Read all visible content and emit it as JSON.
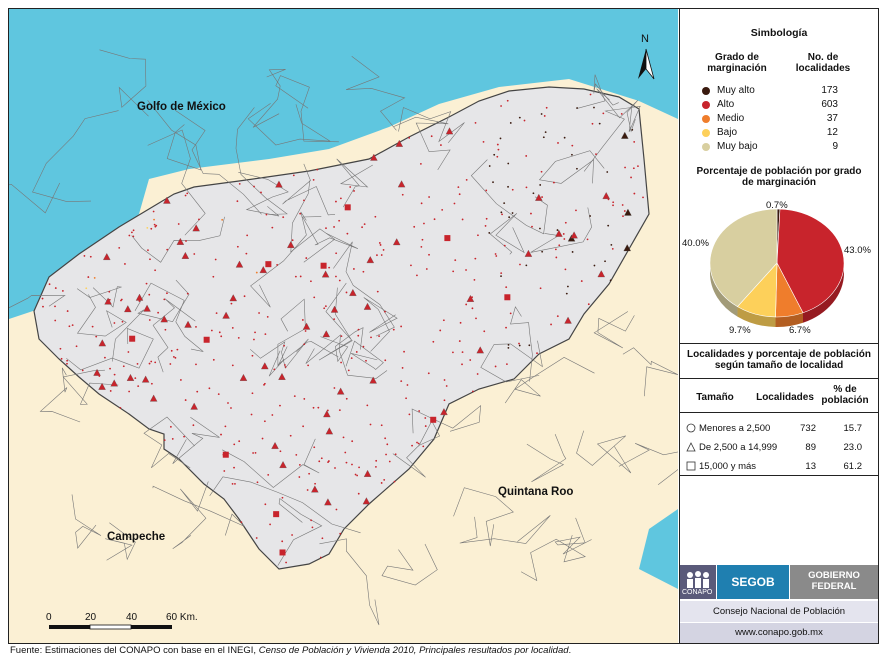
{
  "map": {
    "labels": {
      "gulf": "Golfo de México",
      "quintana_roo": "Quintana Roo",
      "campeche": "Campeche"
    },
    "north_label": "N",
    "scale": {
      "ticks": [
        "0",
        "20",
        "40",
        "60 Km."
      ]
    },
    "colors": {
      "sea": "#5fc6df",
      "land_outside": "#fbf0d4",
      "state": "#e6e6e8",
      "border": "#666666"
    }
  },
  "legend": {
    "title": "Simbología",
    "col_grado": "Grado de marginación",
    "col_localidades": "No. de localidades",
    "items": [
      {
        "label": "Muy alto",
        "count": "173",
        "color": "#3a1a0e"
      },
      {
        "label": "Alto",
        "count": "603",
        "color": "#c8242c"
      },
      {
        "label": "Medio",
        "count": "37",
        "color": "#ef7d2c"
      },
      {
        "label": "Bajo",
        "count": "12",
        "color": "#fdd05a"
      },
      {
        "label": "Muy bajo",
        "count": "9",
        "color": "#d8cfa0"
      }
    ],
    "pie_title": "Porcentaje de población por grado de marginación",
    "pie": [
      {
        "label": "0.7%",
        "value": 0.7,
        "color": "#3a1a0e"
      },
      {
        "label": "43.0%",
        "value": 43.0,
        "color": "#c8242c"
      },
      {
        "label": "6.7%",
        "value": 6.7,
        "color": "#ef7d2c"
      },
      {
        "label": "9.7%",
        "value": 9.7,
        "color": "#fdd05a"
      },
      {
        "label": "40.0%",
        "value": 40.0,
        "color": "#d8cfa0"
      }
    ],
    "table_title": "Localidades y porcentaje de población según tamaño de localidad",
    "table_headers": {
      "tamano": "Tamaño",
      "localidades": "Localidades",
      "porcentaje": "% de población"
    },
    "table_rows": [
      {
        "size": "Menores a 2,500",
        "count": "732",
        "pct": "15.7",
        "symbol": "circle"
      },
      {
        "size": "De 2,500 a 14,999",
        "count": "89",
        "pct": "23.0",
        "symbol": "triangle"
      },
      {
        "size": "15,000 y más",
        "count": "13",
        "pct": "61.2",
        "symbol": "square"
      }
    ],
    "logos": {
      "conapo": "CONAPO",
      "segob": "SEGOB",
      "gobierno_1": "GOBIERNO",
      "gobierno_2": "FEDERAL",
      "consejo": "Consejo Nacional de Población",
      "url": "www.conapo.gob.mx"
    }
  },
  "source": {
    "prefix": "Fuente: Estimaciones del CONAPO con base en el INEGI, ",
    "italic": "Censo de Población y Vivienda 2010, Principales resultados por localidad",
    "suffix": "."
  }
}
